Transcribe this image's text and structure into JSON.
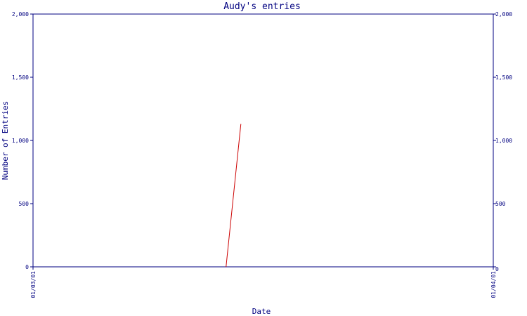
{
  "chart_data": {
    "type": "line",
    "title": "Audy's entries",
    "xlabel": "Date",
    "ylabel": "Number of Entries",
    "ylim": [
      0,
      2000
    ],
    "yticks": [
      {
        "value": 0,
        "label": "0"
      },
      {
        "value": 500,
        "label": "500"
      },
      {
        "value": 1000,
        "label": "1,000"
      },
      {
        "value": 1500,
        "label": "1,500"
      },
      {
        "value": 2000,
        "label": "2,000"
      }
    ],
    "right_axis_zero_label": "0",
    "xlim": [
      "2001-03-01",
      "2001-04-01"
    ],
    "xticks": [
      {
        "value": "2001-03-01",
        "label": "01/03/01"
      },
      {
        "value": "2001-04-01",
        "label": "01/04/01"
      }
    ],
    "series": [
      {
        "color": "#cc0000",
        "points": [
          {
            "x": "2001-03-14",
            "y": 0
          },
          {
            "x": "2001-03-15",
            "y": 1130
          }
        ]
      }
    ],
    "grid": false,
    "colors": {
      "axis": "#000080",
      "line": "#cc0000",
      "background": "#ffffff"
    }
  }
}
